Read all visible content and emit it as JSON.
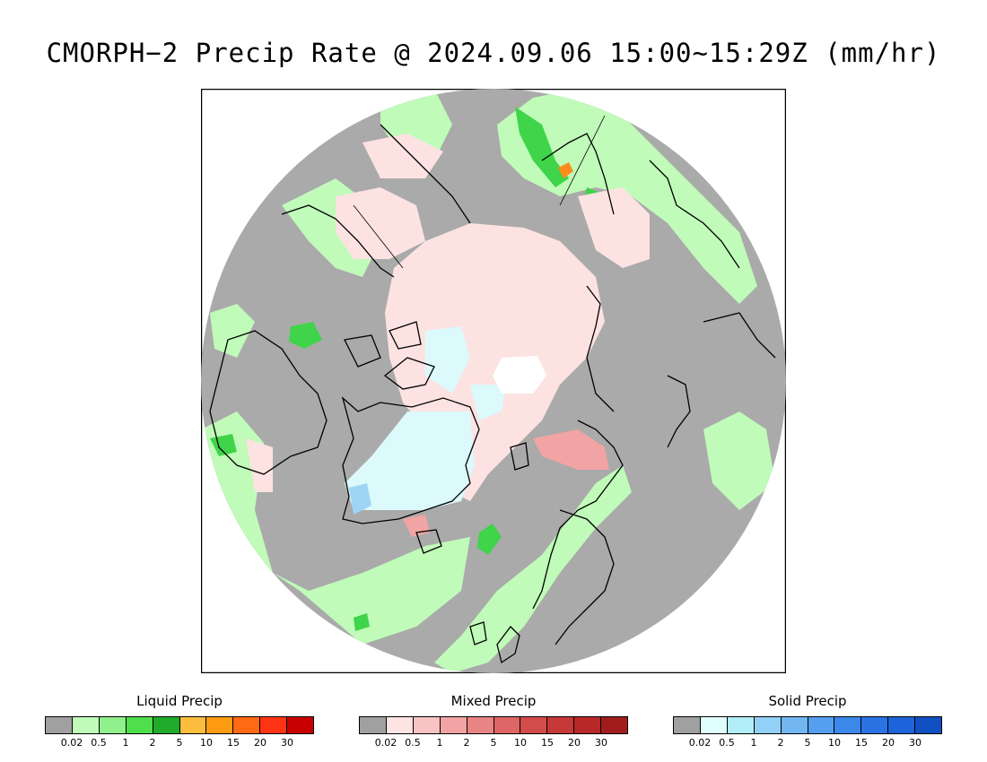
{
  "title": "CMORPH−2 Precip Rate @ 2024.09.06 15:00~15:29Z (mm/hr)",
  "map": {
    "background": "#aaaaaa",
    "coastline_color": "#000000",
    "colors": {
      "liquid_light": "#c0fbb9",
      "liquid_mid": "#86f08a",
      "liquid_strong": "#3fd44a",
      "liquid_heavy": "#1ea627",
      "mixed_light": "#fde2e2",
      "mixed_mid": "#f2a3a3",
      "solid_light": "#dcf9fb",
      "solid_mid": "#9fd5f4",
      "solid_strong": "#4a95ea",
      "orange": "#ff8c1a",
      "red": "#e33a1e",
      "white": "#ffffff"
    }
  },
  "legends": [
    {
      "title": "Liquid Precip",
      "colors": [
        "#a0a0a0",
        "#c0fbb9",
        "#8ff08c",
        "#4fde4c",
        "#20ab2a",
        "#fcbd3f",
        "#ff9b12",
        "#ff6a12",
        "#ff3414",
        "#c90000"
      ],
      "ticks": [
        "0.02",
        "0.5",
        "1",
        "2",
        "5",
        "10",
        "15",
        "20",
        "30"
      ]
    },
    {
      "title": "Mixed Precip",
      "colors": [
        "#a0a0a0",
        "#fde3e3",
        "#f9c3c3",
        "#f2a3a3",
        "#e88484",
        "#dd6565",
        "#d34c4c",
        "#c73838",
        "#b82828",
        "#a11d1d"
      ],
      "ticks": [
        "0.02",
        "0.5",
        "1",
        "2",
        "5",
        "10",
        "15",
        "20",
        "30"
      ]
    },
    {
      "title": "Solid Precip",
      "colors": [
        "#a0a0a0",
        "#e1fefe",
        "#b2eef8",
        "#93d0f6",
        "#73b6f2",
        "#559ef0",
        "#3c88ea",
        "#2a73e4",
        "#1d63d9",
        "#1050c3"
      ],
      "ticks": [
        "0.02",
        "0.5",
        "1",
        "2",
        "5",
        "10",
        "15",
        "20",
        "30"
      ]
    }
  ]
}
